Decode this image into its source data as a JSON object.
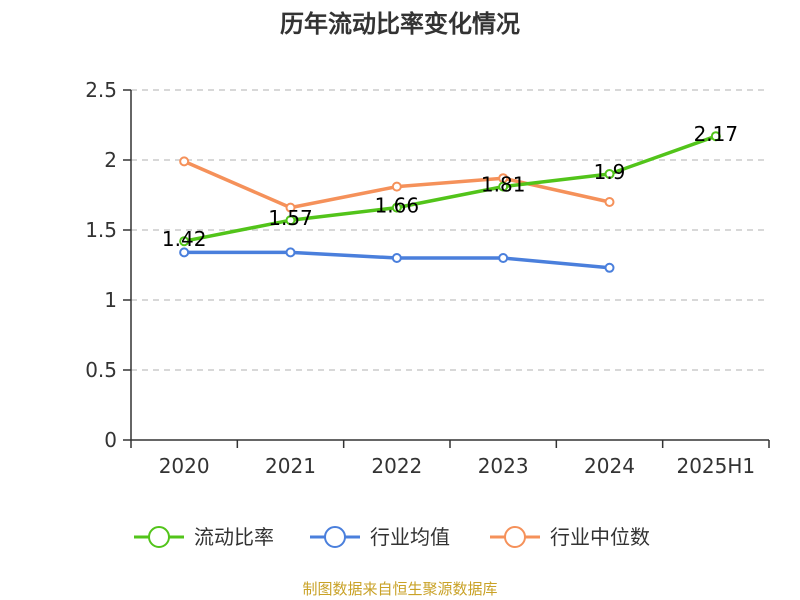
{
  "chart_data": {
    "type": "line",
    "title": "历年流动比率变化情况",
    "categories": [
      "2020",
      "2021",
      "2022",
      "2023",
      "2024",
      "2025H1"
    ],
    "ylim": [
      0,
      2.5
    ],
    "yticks": [
      "0",
      "0.5",
      "1",
      "1.5",
      "2",
      "2.5"
    ],
    "grid": true,
    "legend_position": "bottom",
    "series": [
      {
        "name": "流动比率",
        "color": "#52c41a",
        "values": [
          1.42,
          1.57,
          1.66,
          1.81,
          1.9,
          2.17
        ],
        "labels": [
          "1.42",
          "1.57",
          "1.66",
          "1.81",
          "1.9",
          "2.17"
        ]
      },
      {
        "name": "行业均值",
        "color": "#4a7fdc",
        "values": [
          1.34,
          1.34,
          1.3,
          1.3,
          1.23,
          null
        ]
      },
      {
        "name": "行业中位数",
        "color": "#f5915a",
        "values": [
          1.99,
          1.66,
          1.81,
          1.87,
          1.7,
          null
        ]
      }
    ]
  },
  "source": {
    "text": "制图数据来自恒生聚源数据库",
    "color": "#c9a227"
  }
}
